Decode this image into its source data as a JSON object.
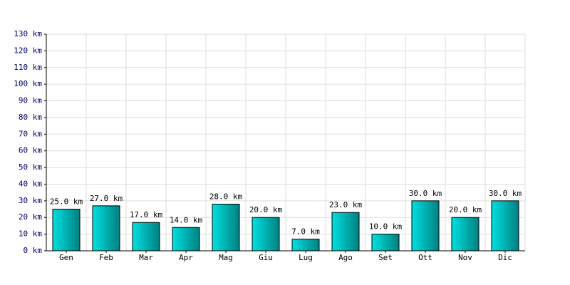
{
  "chart_data": {
    "type": "bar",
    "categories": [
      "Gen",
      "Feb",
      "Mar",
      "Apr",
      "Mag",
      "Giu",
      "Lug",
      "Ago",
      "Set",
      "Ott",
      "Nov",
      "Dic"
    ],
    "values": [
      25,
      27,
      17,
      14,
      28,
      20,
      7,
      23,
      10,
      30,
      20,
      30
    ],
    "value_labels": [
      "25.0 km",
      "27.0 km",
      "17.0 km",
      "14.0 km",
      "28.0 km",
      "20.0 km",
      "7.0 km",
      "23.0 km",
      "10.0 km",
      "30.0 km",
      "20.0 km",
      "30.0 km"
    ],
    "color": "#00e0e0",
    "ylim": [
      0,
      130
    ],
    "yticks": [
      {
        "value": 0,
        "label": "0 km"
      },
      {
        "value": 10,
        "label": "10 km"
      },
      {
        "value": 20,
        "label": "20 km"
      },
      {
        "value": 30,
        "label": "30 km"
      },
      {
        "value": 40,
        "label": "40 km"
      },
      {
        "value": 50,
        "label": "50 km"
      },
      {
        "value": 60,
        "label": "60 km"
      },
      {
        "value": 70,
        "label": "70 km"
      },
      {
        "value": 80,
        "label": "80 km"
      },
      {
        "value": 90,
        "label": "90 km"
      },
      {
        "value": 100,
        "label": "100 km"
      },
      {
        "value": 110,
        "label": "110 km"
      },
      {
        "value": 120,
        "label": "120 km"
      },
      {
        "value": 130,
        "label": "130 km"
      }
    ],
    "grid": true
  }
}
